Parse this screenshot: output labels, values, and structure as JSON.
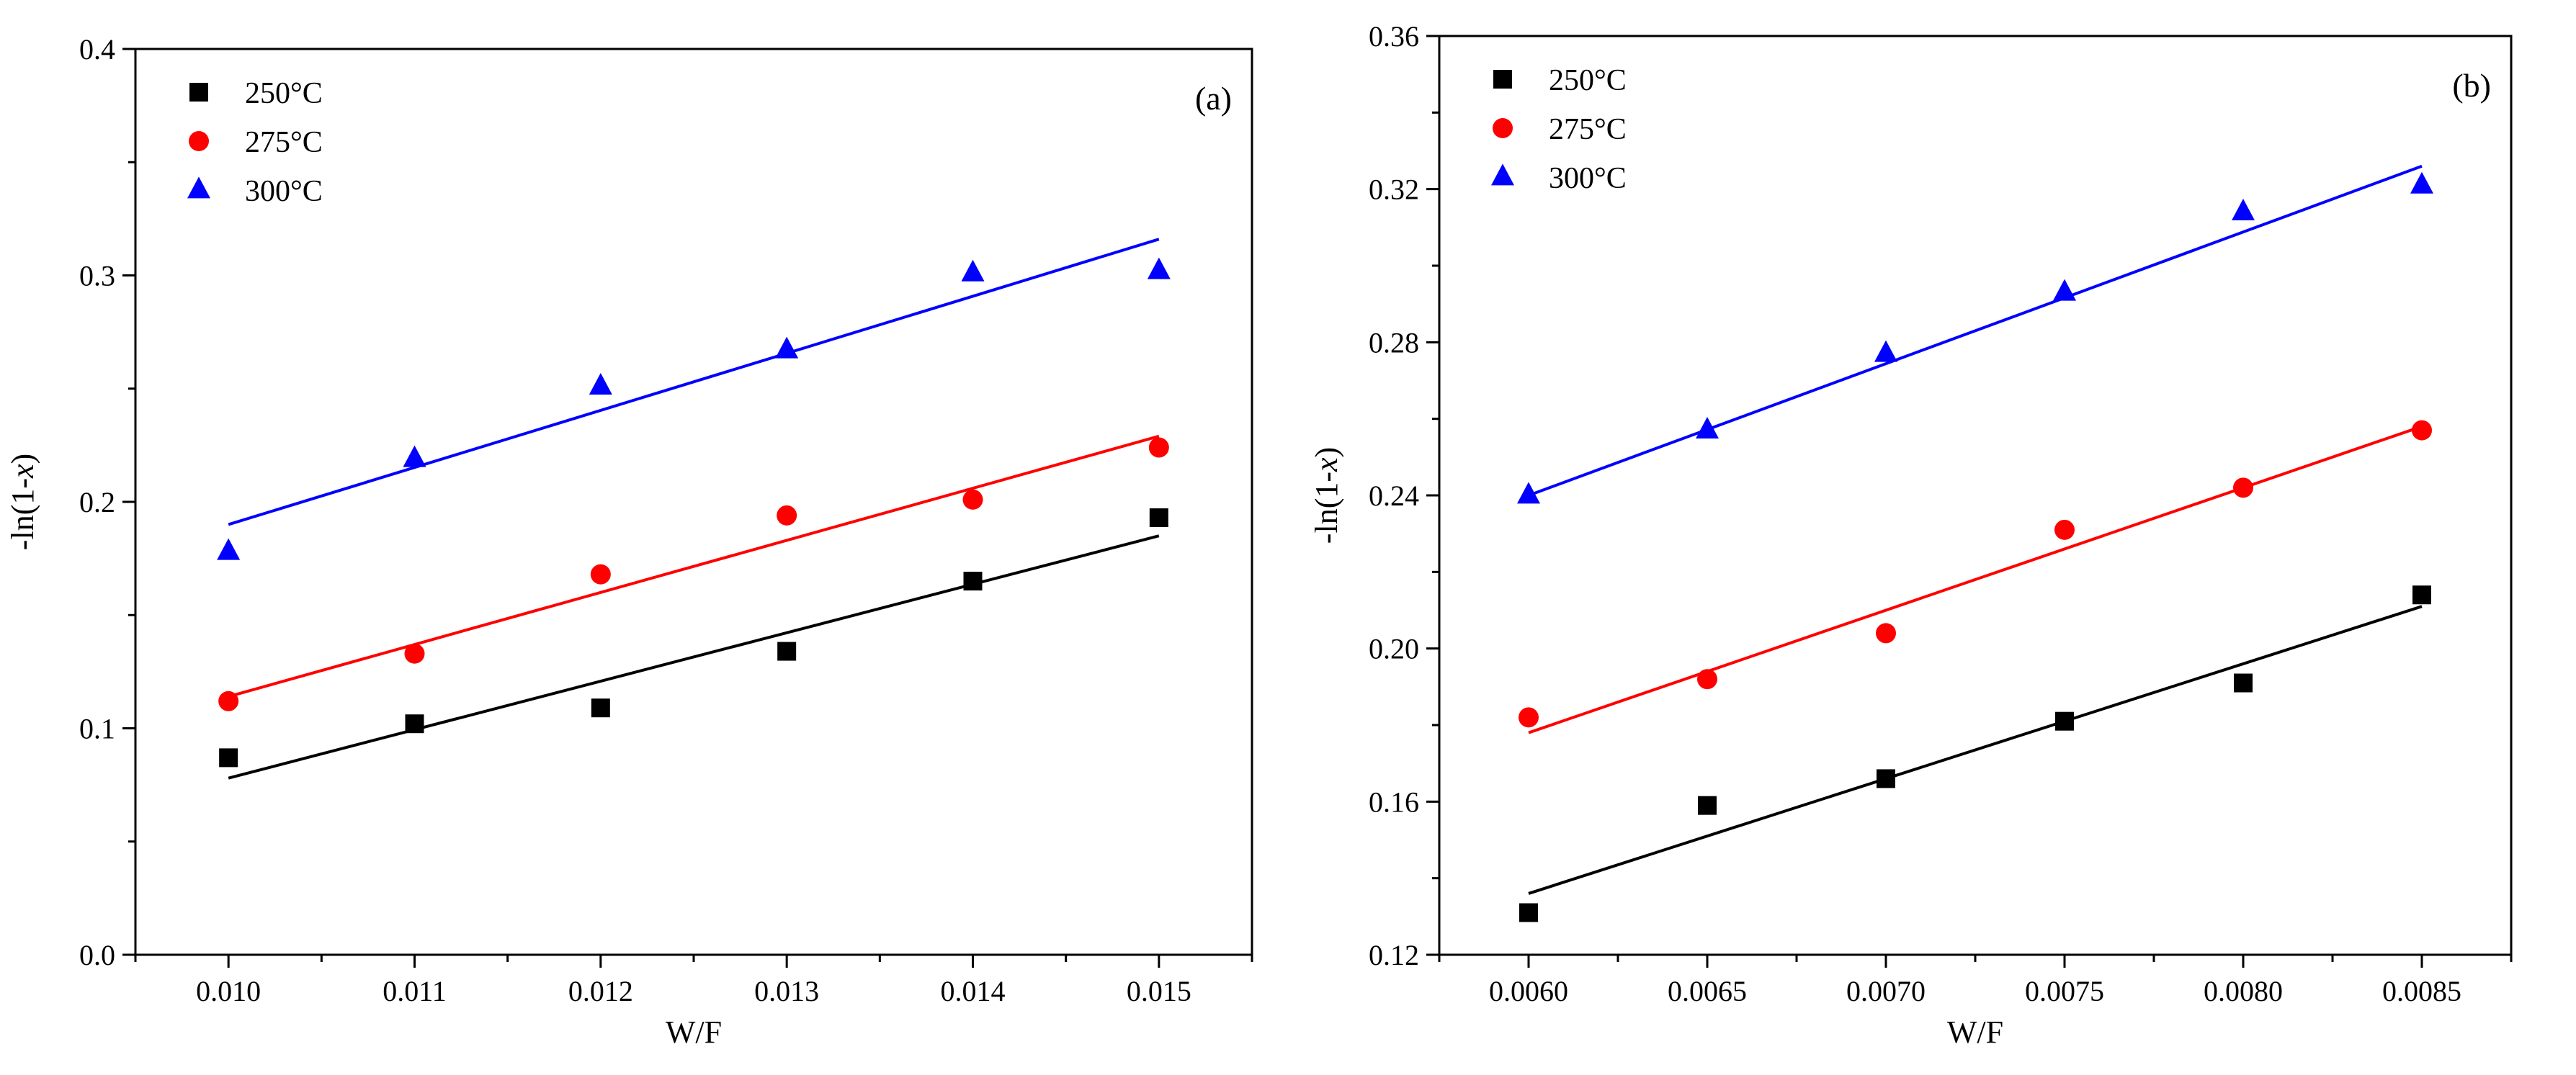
{
  "chart_data": [
    {
      "type": "scatter",
      "panel_label": "(a)",
      "xlabel": "W/F",
      "ylabel_main": "-ln(1-",
      "ylabel_italic": "x",
      "ylabel_end": ")",
      "xlim": [
        0.0095,
        0.0155
      ],
      "ylim": [
        0.0,
        0.4
      ],
      "xticks": [
        "0.010",
        "0.011",
        "0.012",
        "0.013",
        "0.014",
        "0.015"
      ],
      "yticks": [
        "0.0",
        "0.1",
        "0.2",
        "0.3",
        "0.4"
      ],
      "legend_position": "top-left",
      "series": [
        {
          "name": "250°C",
          "color": "#000000",
          "marker": "square",
          "x": [
            0.01,
            0.011,
            0.012,
            0.013,
            0.014,
            0.015
          ],
          "y": [
            0.087,
            0.102,
            0.109,
            0.134,
            0.165,
            0.193
          ],
          "fit": {
            "x": [
              0.01,
              0.015
            ],
            "y": [
              0.078,
              0.185
            ]
          }
        },
        {
          "name": "275°C",
          "color": "#ff0000",
          "marker": "circle",
          "x": [
            0.01,
            0.011,
            0.012,
            0.013,
            0.014,
            0.015
          ],
          "y": [
            0.112,
            0.133,
            0.168,
            0.194,
            0.201,
            0.224
          ],
          "fit": {
            "x": [
              0.01,
              0.015
            ],
            "y": [
              0.114,
              0.229
            ]
          }
        },
        {
          "name": "300°C",
          "color": "#0000ff",
          "marker": "triangle",
          "x": [
            0.01,
            0.011,
            0.012,
            0.013,
            0.014,
            0.015
          ],
          "y": [
            0.178,
            0.219,
            0.251,
            0.267,
            0.301,
            0.302
          ],
          "fit": {
            "x": [
              0.01,
              0.015
            ],
            "y": [
              0.19,
              0.316
            ]
          }
        }
      ]
    },
    {
      "type": "scatter",
      "panel_label": "(b)",
      "xlabel": "W/F",
      "ylabel_main": "-ln(1-",
      "ylabel_italic": "x",
      "ylabel_end": ")",
      "xlim": [
        0.00575,
        0.00875
      ],
      "ylim": [
        0.12,
        0.36
      ],
      "xticks": [
        "0.0060",
        "0.0065",
        "0.0070",
        "0.0075",
        "0.0080",
        "0.0085"
      ],
      "yticks": [
        "0.12",
        "0.16",
        "0.20",
        "0.24",
        "0.28",
        "0.32",
        "0.36"
      ],
      "legend_position": "top-left",
      "series": [
        {
          "name": "250°C",
          "color": "#000000",
          "marker": "square",
          "x": [
            0.006,
            0.0065,
            0.007,
            0.0075,
            0.008,
            0.0085
          ],
          "y": [
            0.131,
            0.159,
            0.166,
            0.181,
            0.191,
            0.214
          ],
          "fit": {
            "x": [
              0.006,
              0.0085
            ],
            "y": [
              0.136,
              0.211
            ]
          }
        },
        {
          "name": "275°C",
          "color": "#ff0000",
          "marker": "circle",
          "x": [
            0.006,
            0.0065,
            0.007,
            0.0075,
            0.008,
            0.0085
          ],
          "y": [
            0.182,
            0.192,
            0.204,
            0.231,
            0.242,
            0.257
          ],
          "fit": {
            "x": [
              0.006,
              0.0085
            ],
            "y": [
              0.178,
              0.258
            ]
          }
        },
        {
          "name": "300°C",
          "color": "#0000ff",
          "marker": "triangle",
          "x": [
            0.006,
            0.0065,
            0.007,
            0.0075,
            0.008,
            0.0085
          ],
          "y": [
            0.24,
            0.257,
            0.277,
            0.293,
            0.314,
            0.321
          ],
          "fit": {
            "x": [
              0.006,
              0.0085
            ],
            "y": [
              0.24,
              0.326
            ]
          }
        }
      ]
    }
  ]
}
